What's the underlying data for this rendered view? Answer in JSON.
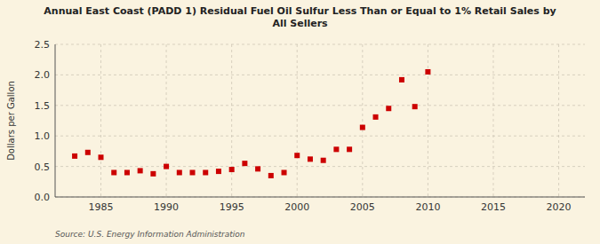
{
  "chart_data": {
    "type": "scatter",
    "title": "Annual East Coast (PADD 1) Residual Fuel Oil Sulfur Less Than or Equal to 1% Retail Sales by\nAll Sellers",
    "y_label": "Dollars per Gallon",
    "source": "Source: U.S. Energy Information Administration",
    "x": [
      1983,
      1984,
      1985,
      1986,
      1987,
      1988,
      1989,
      1990,
      1991,
      1992,
      1993,
      1994,
      1995,
      1996,
      1997,
      1998,
      1999,
      2000,
      2001,
      2002,
      2003,
      2004,
      2005,
      2006,
      2007,
      2008,
      2009,
      2010
    ],
    "values": [
      0.67,
      0.73,
      0.65,
      0.4,
      0.4,
      0.43,
      0.38,
      0.5,
      0.4,
      0.4,
      0.4,
      0.42,
      0.45,
      0.55,
      0.46,
      0.35,
      0.4,
      0.68,
      0.62,
      0.6,
      0.78,
      0.78,
      1.14,
      1.31,
      1.45,
      1.92,
      1.48,
      2.05
    ],
    "color": "#cc0000",
    "marker": "square",
    "xlim": [
      1981.5,
      2022
    ],
    "ylim": [
      0.0,
      2.5
    ],
    "xticks": [
      1985,
      1990,
      1995,
      2000,
      2005,
      2010,
      2015,
      2020
    ],
    "yticks": [
      {
        "value": 0.0,
        "label": "0.0"
      },
      0.5,
      {
        "value": 1.0,
        "label": "1.0"
      },
      1.5,
      {
        "value": 2.0,
        "label": "2.0"
      },
      2.5
    ],
    "grid": true
  }
}
